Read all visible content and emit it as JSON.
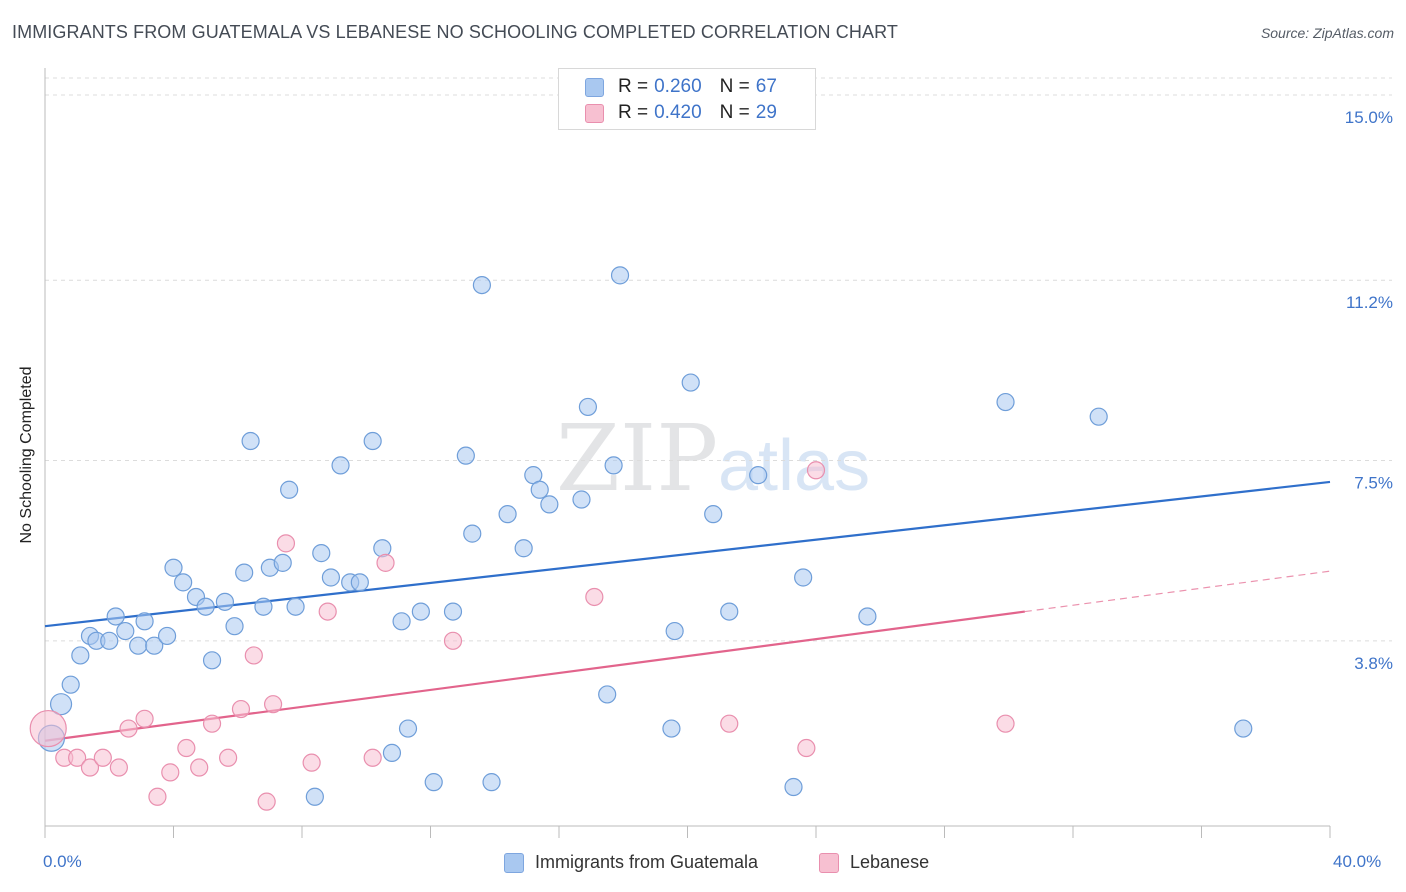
{
  "title": "IMMIGRANTS FROM GUATEMALA VS LEBANESE NO SCHOOLING COMPLETED CORRELATION CHART",
  "source": "Source: ZipAtlas.com",
  "watermark": {
    "part1": "ZIP",
    "part2": "atlas"
  },
  "legend": {
    "r_label": "R =",
    "n_label": "N =",
    "entries": [
      {
        "r": "0.260",
        "n": "67",
        "color": "#a9c8f0",
        "border": "#7ea6df"
      },
      {
        "r": "0.420",
        "n": "29",
        "color": "#f7c0d1",
        "border": "#e98fae"
      }
    ]
  },
  "bottom_legend": [
    "Immigrants from Guatemala",
    "Lebanese"
  ],
  "chart_data": {
    "type": "scatter",
    "title": "IMMIGRANTS FROM GUATEMALA VS LEBANESE NO SCHOOLING COMPLETED CORRELATION CHART",
    "xlabel": "",
    "ylabel": "No Schooling Completed",
    "xlim": [
      0,
      40
    ],
    "ylim": [
      0,
      15.35
    ],
    "x_tick_labels": [
      "0.0%",
      "40.0%"
    ],
    "y_ticks": [
      {
        "value": 3.8,
        "label": "3.8%"
      },
      {
        "value": 7.5,
        "label": "7.5%"
      },
      {
        "value": 11.2,
        "label": "11.2%"
      },
      {
        "value": 15.0,
        "label": "15.0%"
      }
    ],
    "grid": "horizontal-dashed",
    "legend_position": "top-center",
    "series": [
      {
        "name": "Immigrants from Guatemala",
        "color": "#a9c8f0",
        "stroke": "#6f9ed9",
        "trend": {
          "x": [
            0,
            40
          ],
          "y": [
            4.1,
            7.06
          ],
          "color": "#2f6fcb"
        },
        "points": [
          [
            0.2,
            1.8
          ],
          [
            0.5,
            2.5
          ],
          [
            0.8,
            2.9
          ],
          [
            1.1,
            3.5
          ],
          [
            1.4,
            3.9
          ],
          [
            1.6,
            3.8
          ],
          [
            2.0,
            3.8
          ],
          [
            2.2,
            4.3
          ],
          [
            2.5,
            4.0
          ],
          [
            2.9,
            3.7
          ],
          [
            3.1,
            4.2
          ],
          [
            3.4,
            3.7
          ],
          [
            3.8,
            3.9
          ],
          [
            4.0,
            5.3
          ],
          [
            4.3,
            5.0
          ],
          [
            4.7,
            4.7
          ],
          [
            5.0,
            4.5
          ],
          [
            5.2,
            3.4
          ],
          [
            5.6,
            4.6
          ],
          [
            5.9,
            4.1
          ],
          [
            6.2,
            5.2
          ],
          [
            6.4,
            7.9
          ],
          [
            6.8,
            4.5
          ],
          [
            7.0,
            5.3
          ],
          [
            7.4,
            5.4
          ],
          [
            7.6,
            6.9
          ],
          [
            7.8,
            4.5
          ],
          [
            8.4,
            0.6
          ],
          [
            8.6,
            5.6
          ],
          [
            8.9,
            5.1
          ],
          [
            9.2,
            7.4
          ],
          [
            9.5,
            5.0
          ],
          [
            9.8,
            5.0
          ],
          [
            10.2,
            7.9
          ],
          [
            10.5,
            5.7
          ],
          [
            10.8,
            1.5
          ],
          [
            11.1,
            4.2
          ],
          [
            11.3,
            2.0
          ],
          [
            11.7,
            4.4
          ],
          [
            12.1,
            0.9
          ],
          [
            12.7,
            4.4
          ],
          [
            13.1,
            7.6
          ],
          [
            13.3,
            6.0
          ],
          [
            13.6,
            11.1
          ],
          [
            13.9,
            0.9
          ],
          [
            14.4,
            6.4
          ],
          [
            14.9,
            5.7
          ],
          [
            15.2,
            7.2
          ],
          [
            15.4,
            6.9
          ],
          [
            15.7,
            6.6
          ],
          [
            16.7,
            6.7
          ],
          [
            16.9,
            8.6
          ],
          [
            17.5,
            2.7
          ],
          [
            17.7,
            7.4
          ],
          [
            17.9,
            11.3
          ],
          [
            19.5,
            2.0
          ],
          [
            19.6,
            4.0
          ],
          [
            20.1,
            9.1
          ],
          [
            20.8,
            6.4
          ],
          [
            21.3,
            4.4
          ],
          [
            22.2,
            7.2
          ],
          [
            23.3,
            0.8
          ],
          [
            23.6,
            5.1
          ],
          [
            25.6,
            4.3
          ],
          [
            29.9,
            8.7
          ],
          [
            32.8,
            8.4
          ],
          [
            37.3,
            2.0
          ]
        ]
      },
      {
        "name": "Lebanese",
        "color": "#f7c0d1",
        "stroke": "#e98fae",
        "trend": {
          "x": [
            0,
            30.5
          ],
          "y": [
            1.75,
            4.4
          ],
          "color": "#e2648c"
        },
        "trend_dashed": {
          "x": [
            30.5,
            40
          ],
          "y": [
            4.4,
            5.23
          ]
        },
        "points": [
          [
            0.1,
            2.0
          ],
          [
            0.6,
            1.4
          ],
          [
            1.0,
            1.4
          ],
          [
            1.4,
            1.2
          ],
          [
            1.8,
            1.4
          ],
          [
            2.3,
            1.2
          ],
          [
            2.6,
            2.0
          ],
          [
            3.1,
            2.2
          ],
          [
            3.5,
            0.6
          ],
          [
            3.9,
            1.1
          ],
          [
            4.4,
            1.6
          ],
          [
            4.8,
            1.2
          ],
          [
            5.2,
            2.1
          ],
          [
            5.7,
            1.4
          ],
          [
            6.1,
            2.4
          ],
          [
            6.5,
            3.5
          ],
          [
            6.9,
            0.5
          ],
          [
            7.1,
            2.5
          ],
          [
            7.5,
            5.8
          ],
          [
            8.3,
            1.3
          ],
          [
            8.8,
            4.4
          ],
          [
            10.2,
            1.4
          ],
          [
            10.6,
            5.4
          ],
          [
            12.7,
            3.8
          ],
          [
            17.1,
            4.7
          ],
          [
            21.3,
            2.1
          ],
          [
            23.7,
            1.6
          ],
          [
            24.0,
            7.3
          ],
          [
            29.9,
            2.1
          ]
        ]
      }
    ]
  }
}
